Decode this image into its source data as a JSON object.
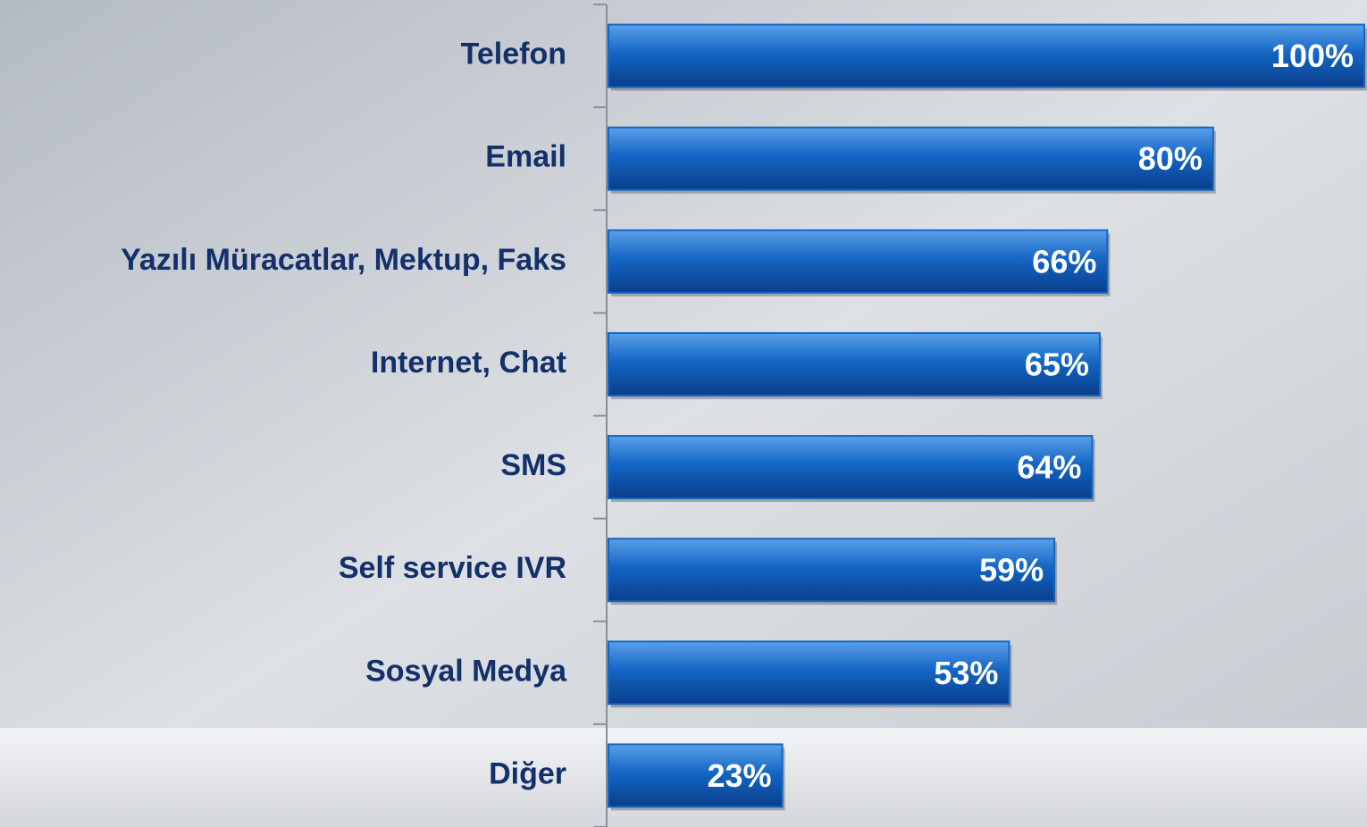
{
  "chart_data": {
    "type": "bar",
    "orientation": "horizontal",
    "categories": [
      "Telefon",
      "Email",
      "Yazılı Müracatlar, Mektup, Faks",
      "Internet, Chat",
      "SMS",
      "Self service IVR",
      "Sosyal Medya",
      "Diğer"
    ],
    "values": [
      100,
      80,
      66,
      65,
      64,
      59,
      53,
      23
    ],
    "value_labels": [
      "100%",
      "80%",
      "66%",
      "65%",
      "64%",
      "59%",
      "53%",
      "23%"
    ],
    "color": "#1466c4",
    "xlim": [
      0,
      100
    ]
  }
}
